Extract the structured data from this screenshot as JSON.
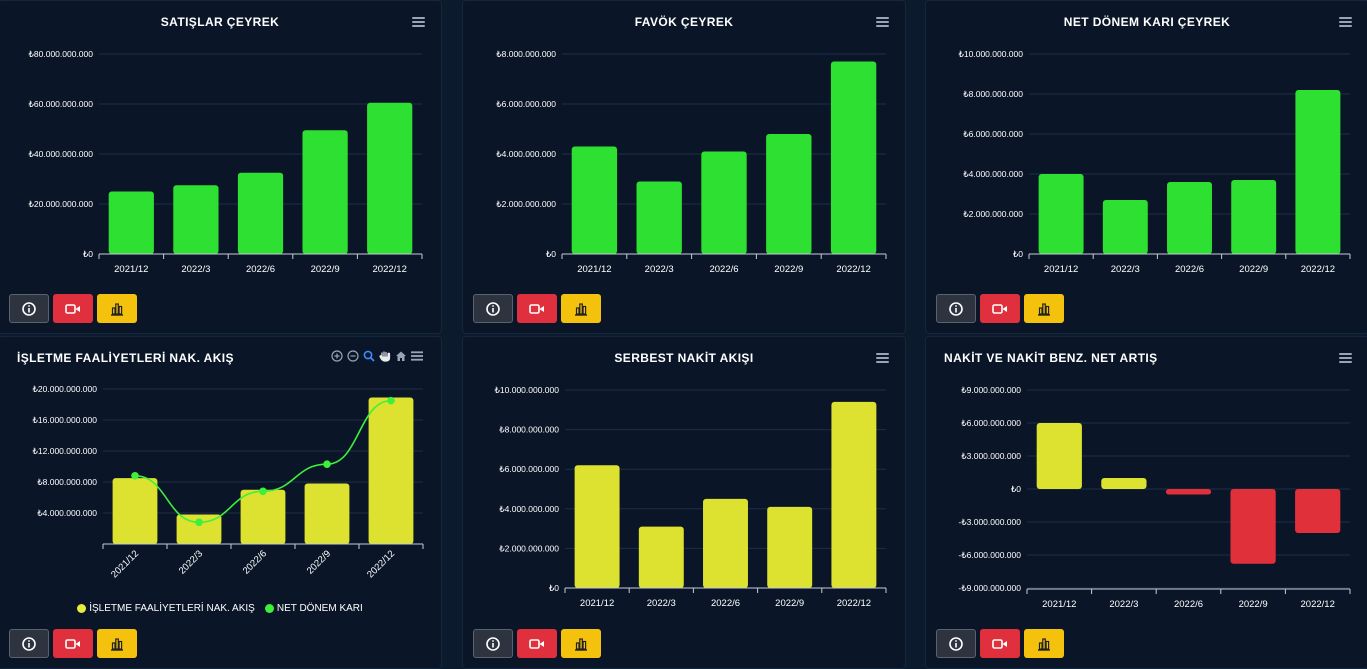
{
  "colors": {
    "green": "#2ee031",
    "yellow": "#dde230",
    "red": "#e0303a",
    "axis": "#c5ccd6",
    "grid": "#1c2d44",
    "line": "#3cf03c"
  },
  "chart_data": [
    {
      "type": "bar",
      "title": "SATIŞLAR ÇEYREK",
      "categories": [
        "2021/12",
        "2022/3",
        "2022/6",
        "2022/9",
        "2022/12"
      ],
      "values": [
        25000000000,
        27500000000,
        32500000000,
        49500000000,
        60500000000
      ],
      "ylim": [
        0,
        80000000000
      ],
      "yticks": [
        0,
        20000000000,
        40000000000,
        60000000000,
        80000000000
      ],
      "ytick_labels": [
        "₺0",
        "₺20.000.000.000",
        "₺40.000.000.000",
        "₺60.000.000.000",
        "₺80.000.000.000"
      ],
      "color": "#2ee031",
      "grid": true
    },
    {
      "type": "bar",
      "title": "FAVÖK ÇEYREK",
      "categories": [
        "2021/12",
        "2022/3",
        "2022/6",
        "2022/9",
        "2022/12"
      ],
      "values": [
        4300000000,
        2900000000,
        4100000000,
        4800000000,
        7700000000
      ],
      "ylim": [
        0,
        8000000000
      ],
      "yticks": [
        0,
        2000000000,
        4000000000,
        6000000000,
        8000000000
      ],
      "ytick_labels": [
        "₺0",
        "₺2.000.000.000",
        "₺4.000.000.000",
        "₺6.000.000.000",
        "₺8.000.000.000"
      ],
      "color": "#2ee031",
      "grid": true
    },
    {
      "type": "bar",
      "title": "NET DÖNEM KARI ÇEYREK",
      "categories": [
        "2021/12",
        "2022/3",
        "2022/6",
        "2022/9",
        "2022/12"
      ],
      "values": [
        4000000000,
        2700000000,
        3600000000,
        3700000000,
        8200000000
      ],
      "ylim": [
        0,
        10000000000
      ],
      "yticks": [
        0,
        2000000000,
        4000000000,
        6000000000,
        8000000000,
        10000000000
      ],
      "ytick_labels": [
        "₺0",
        "₺2.000.000.000",
        "₺4.000.000.000",
        "₺6.000.000.000",
        "₺8.000.000.000",
        "₺10.000.000.000"
      ],
      "color": "#2ee031",
      "grid": true
    },
    {
      "type": "bar",
      "title": "İŞLETME FAALİYETLERİ NAK. AKIŞ",
      "categories": [
        "2021/12",
        "2022/3",
        "2022/6",
        "2022/9",
        "2022/12"
      ],
      "series": [
        {
          "name": "İŞLETME FAALİYETLERİ NAK. AKIŞ",
          "type": "bar",
          "values": [
            8500000000,
            3800000000,
            7000000000,
            7800000000,
            18900000000
          ],
          "color": "#dde230"
        },
        {
          "name": "NET DÖNEM KARI",
          "type": "line",
          "values": [
            8800000000,
            2800000000,
            6800000000,
            10300000000,
            18500000000
          ],
          "color": "#3cf03c"
        }
      ],
      "ylim": [
        0,
        20000000000
      ],
      "yticks": [
        4000000000,
        8000000000,
        12000000000,
        16000000000,
        20000000000
      ],
      "ytick_labels": [
        "₺4.000.000.000",
        "₺8.000.000.000",
        "₺12.000.000.000",
        "₺16.000.000.000",
        "₺20.000.000.000"
      ],
      "legend": "bottom",
      "grid": true
    },
    {
      "type": "bar",
      "title": "SERBEST NAKİT AKIŞI",
      "categories": [
        "2021/12",
        "2022/3",
        "2022/6",
        "2022/9",
        "2022/12"
      ],
      "values": [
        6200000000,
        3100000000,
        4500000000,
        4100000000,
        9400000000
      ],
      "ylim": [
        0,
        10000000000
      ],
      "yticks": [
        0,
        2000000000,
        4000000000,
        6000000000,
        8000000000,
        10000000000
      ],
      "ytick_labels": [
        "₺0",
        "₺2.000.000.000",
        "₺4.000.000.000",
        "₺6.000.000.000",
        "₺8.000.000.000",
        "₺10.000.000.000"
      ],
      "color": "#dde230",
      "grid": true
    },
    {
      "type": "bar",
      "title": "NAKİT VE NAKİT BENZ. NET ARTIŞ",
      "categories": [
        "2021/12",
        "2022/3",
        "2022/6",
        "2022/9",
        "2022/12"
      ],
      "values": [
        6000000000,
        1000000000,
        -500000000,
        -6800000000,
        -4000000000
      ],
      "ylim": [
        -9000000000,
        9000000000
      ],
      "yticks": [
        -9000000000,
        -6000000000,
        -3000000000,
        0,
        3000000000,
        6000000000,
        9000000000
      ],
      "ytick_labels": [
        "-₺9.000.000.000",
        "-₺6.000.000.000",
        "-₺3.000.000.000",
        "₺0",
        "₺3.000.000.000",
        "₺6.000.000.000",
        "₺9.000.000.000"
      ],
      "positive_color": "#dde230",
      "negative_color": "#e0303a",
      "grid": true
    }
  ]
}
